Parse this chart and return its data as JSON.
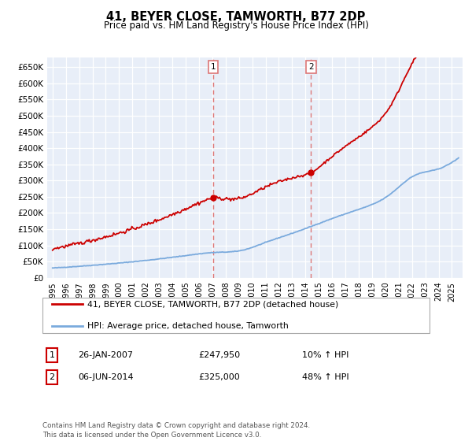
{
  "title": "41, BEYER CLOSE, TAMWORTH, B77 2DP",
  "subtitle": "Price paid vs. HM Land Registry's House Price Index (HPI)",
  "ylim": [
    0,
    680000
  ],
  "yticks": [
    0,
    50000,
    100000,
    150000,
    200000,
    250000,
    300000,
    350000,
    400000,
    450000,
    500000,
    550000,
    600000,
    650000
  ],
  "ylabels": [
    "£0",
    "£50K",
    "£100K",
    "£150K",
    "£200K",
    "£250K",
    "£300K",
    "£350K",
    "£400K",
    "£450K",
    "£500K",
    "£550K",
    "£600K",
    "£650K"
  ],
  "xlim": [
    1994.6,
    2025.8
  ],
  "sale1_x": 2007.07,
  "sale1_y": 247950,
  "sale1_label": "1",
  "sale1_date": "26-JAN-2007",
  "sale1_price": "£247,950",
  "sale1_hpi": "10% ↑ HPI",
  "sale2_x": 2014.42,
  "sale2_y": 325000,
  "sale2_label": "2",
  "sale2_date": "06-JUN-2014",
  "sale2_price": "£325,000",
  "sale2_hpi": "48% ↑ HPI",
  "line_color_property": "#cc0000",
  "line_color_hpi": "#7aaadd",
  "vline_color": "#dd7777",
  "background_color": "#e8eef8",
  "legend_label_property": "41, BEYER CLOSE, TAMWORTH, B77 2DP (detached house)",
  "legend_label_hpi": "HPI: Average price, detached house, Tamworth",
  "footer": "Contains HM Land Registry data © Crown copyright and database right 2024.\nThis data is licensed under the Open Government Licence v3.0."
}
